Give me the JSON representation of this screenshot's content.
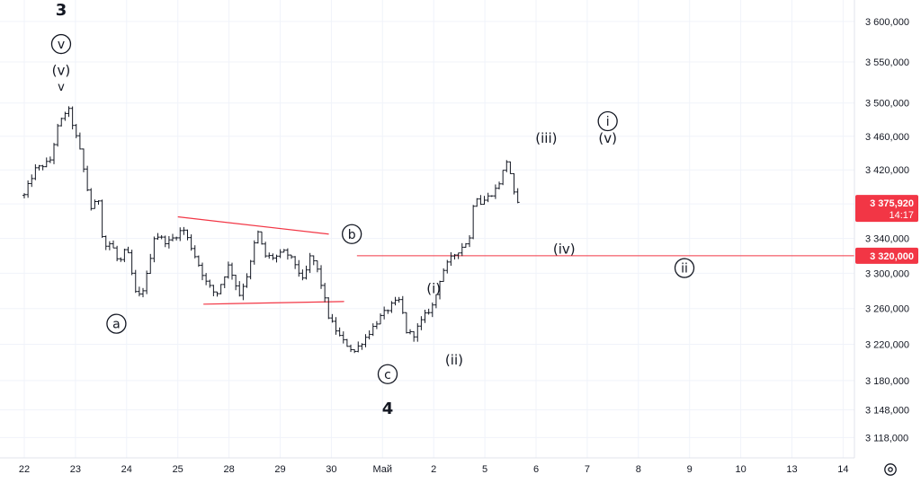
{
  "chart_data": {
    "type": "candlestick",
    "symbol_hidden": true,
    "x_labels": [
      "22",
      "23",
      "24",
      "25",
      "28",
      "29",
      "30",
      "Май",
      "2",
      "5",
      "6",
      "7",
      "8",
      "9",
      "10",
      "13",
      "14"
    ],
    "y_ticks": [
      3600000,
      3550000,
      3500000,
      3460000,
      3420000,
      3380000,
      3340000,
      3300000,
      3260000,
      3220000,
      3180000,
      3148000,
      3118000
    ],
    "y_tick_labels": [
      "3 600,000",
      "3 550,000",
      "3 500,000",
      "3 460,000",
      "3 420,000",
      "3 380,000",
      "3 340,000",
      "3 300,000",
      "3 260,000",
      "3 220,000",
      "3 180,000",
      "3 148,000",
      "3 118,000"
    ],
    "ylim": [
      3100000,
      3620000
    ],
    "y_scale": "log",
    "grid": true,
    "last_price": {
      "label": "3 375,920",
      "time": "14:17",
      "value": 3375920,
      "color": "#f23645"
    },
    "horizontal_level": {
      "label": "3 320,000",
      "value": 3320000,
      "color": "#f23645"
    },
    "price_path": [
      {
        "x": 0.0,
        "y": 3390000
      },
      {
        "x": 0.2,
        "y": 3420000
      },
      {
        "x": 0.35,
        "y": 3425000
      },
      {
        "x": 0.5,
        "y": 3430000
      },
      {
        "x": 0.65,
        "y": 3470000
      },
      {
        "x": 0.85,
        "y": 3495000
      },
      {
        "x": 1.1,
        "y": 3440000
      },
      {
        "x": 1.3,
        "y": 3375000
      },
      {
        "x": 1.45,
        "y": 3385000
      },
      {
        "x": 1.55,
        "y": 3330000
      },
      {
        "x": 1.7,
        "y": 3335000
      },
      {
        "x": 1.85,
        "y": 3310000
      },
      {
        "x": 2.0,
        "y": 3330000
      },
      {
        "x": 2.2,
        "y": 3270000
      },
      {
        "x": 2.35,
        "y": 3285000
      },
      {
        "x": 2.55,
        "y": 3345000
      },
      {
        "x": 2.8,
        "y": 3335000
      },
      {
        "x": 3.0,
        "y": 3345000
      },
      {
        "x": 3.1,
        "y": 3352000
      },
      {
        "x": 3.3,
        "y": 3325000
      },
      {
        "x": 3.55,
        "y": 3290000
      },
      {
        "x": 3.75,
        "y": 3275000
      },
      {
        "x": 4.0,
        "y": 3310000
      },
      {
        "x": 4.2,
        "y": 3275000
      },
      {
        "x": 4.4,
        "y": 3305000
      },
      {
        "x": 4.55,
        "y": 3350000
      },
      {
        "x": 4.7,
        "y": 3320000
      },
      {
        "x": 4.9,
        "y": 3318000
      },
      {
        "x": 5.1,
        "y": 3325000
      },
      {
        "x": 5.3,
        "y": 3310000
      },
      {
        "x": 5.45,
        "y": 3290000
      },
      {
        "x": 5.6,
        "y": 3322000
      },
      {
        "x": 5.75,
        "y": 3300000
      },
      {
        "x": 5.95,
        "y": 3250000
      },
      {
        "x": 6.2,
        "y": 3225000
      },
      {
        "x": 6.45,
        "y": 3212000
      },
      {
        "x": 6.7,
        "y": 3230000
      },
      {
        "x": 6.95,
        "y": 3250000
      },
      {
        "x": 7.2,
        "y": 3265000
      },
      {
        "x": 7.35,
        "y": 3270000
      },
      {
        "x": 7.45,
        "y": 3235000
      },
      {
        "x": 7.6,
        "y": 3230000
      },
      {
        "x": 7.8,
        "y": 3250000
      },
      {
        "x": 8.0,
        "y": 3265000
      },
      {
        "x": 8.15,
        "y": 3300000
      },
      {
        "x": 8.35,
        "y": 3318000
      },
      {
        "x": 8.55,
        "y": 3330000
      },
      {
        "x": 8.7,
        "y": 3340000
      },
      {
        "x": 8.8,
        "y": 3395000
      },
      {
        "x": 8.9,
        "y": 3380000
      },
      {
        "x": 9.1,
        "y": 3390000
      },
      {
        "x": 9.25,
        "y": 3400000
      },
      {
        "x": 9.45,
        "y": 3435000
      },
      {
        "x": 9.55,
        "y": 3395000
      },
      {
        "x": 9.65,
        "y": 3378000
      }
    ],
    "trendlines": [
      {
        "from": {
          "x": 3.0,
          "y": 3365000
        },
        "to": {
          "x": 5.95,
          "y": 3345000
        }
      },
      {
        "from": {
          "x": 3.5,
          "y": 3265000
        },
        "to": {
          "x": 6.25,
          "y": 3268000
        }
      }
    ],
    "wave_labels": [
      {
        "text": "3",
        "x": 0.72,
        "y": 3615000,
        "circle": false,
        "size": "large"
      },
      {
        "text": "v",
        "x": 0.72,
        "y": 3572000,
        "circle": true
      },
      {
        "text": "(v)",
        "x": 0.72,
        "y": 3540000,
        "circle": false
      },
      {
        "text": "v",
        "x": 0.72,
        "y": 3520000,
        "circle": false,
        "size": "small"
      },
      {
        "text": "a",
        "x": 1.8,
        "y": 3243000,
        "circle": true
      },
      {
        "text": "b",
        "x": 6.4,
        "y": 3345000,
        "circle": true
      },
      {
        "text": "c",
        "x": 7.1,
        "y": 3187000,
        "circle": true
      },
      {
        "text": "4",
        "x": 7.1,
        "y": 3150000,
        "circle": false,
        "size": "large"
      },
      {
        "text": "(i)",
        "x": 8.0,
        "y": 3283000,
        "circle": false
      },
      {
        "text": "(ii)",
        "x": 8.4,
        "y": 3203000,
        "circle": false
      },
      {
        "text": "(iii)",
        "x": 10.2,
        "y": 3458000,
        "circle": false
      },
      {
        "text": "(iv)",
        "x": 10.55,
        "y": 3328000,
        "circle": false
      },
      {
        "text": "i",
        "x": 11.4,
        "y": 3478000,
        "circle": true
      },
      {
        "text": "(v)",
        "x": 11.4,
        "y": 3458000,
        "circle": false
      },
      {
        "text": "ii",
        "x": 12.9,
        "y": 3306000,
        "circle": true
      }
    ],
    "colors": {
      "up": "#26a69a",
      "down": "#131722",
      "bar": "#131722",
      "trend": "#f23645",
      "grid": "#f0f3fa",
      "axis_text": "#131722"
    }
  },
  "ui": {
    "settings_icon": "gear-icon"
  }
}
